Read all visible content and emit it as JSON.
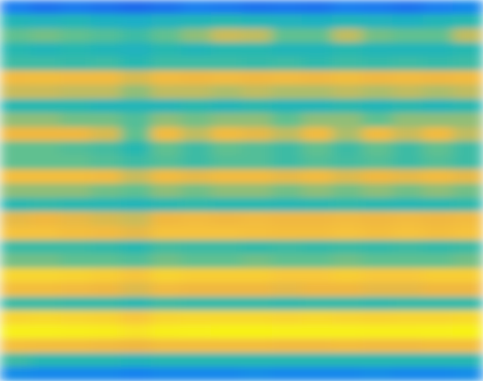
{
  "chart_data": {
    "type": "heatmap",
    "tick_labels": false,
    "cells": [
      [
        0.15,
        0.12,
        0.14,
        0.12,
        0.1,
        0.12,
        0.15,
        0.14,
        0.12,
        0.13,
        0.12,
        0.15,
        0.14,
        0.12,
        0.15,
        0.18
      ],
      [
        0.4,
        0.38,
        0.4,
        0.37,
        0.35,
        0.38,
        0.4,
        0.42,
        0.4,
        0.38,
        0.37,
        0.4,
        0.38,
        0.37,
        0.4,
        0.42
      ],
      [
        0.5,
        0.52,
        0.5,
        0.48,
        0.45,
        0.5,
        0.55,
        0.62,
        0.6,
        0.5,
        0.5,
        0.6,
        0.52,
        0.5,
        0.5,
        0.6
      ],
      [
        0.42,
        0.4,
        0.42,
        0.4,
        0.38,
        0.42,
        0.4,
        0.42,
        0.42,
        0.4,
        0.4,
        0.42,
        0.4,
        0.4,
        0.4,
        0.42
      ],
      [
        0.45,
        0.45,
        0.44,
        0.45,
        0.42,
        0.45,
        0.45,
        0.45,
        0.44,
        0.45,
        0.43,
        0.45,
        0.44,
        0.45,
        0.44,
        0.45
      ],
      [
        0.72,
        0.73,
        0.72,
        0.72,
        0.65,
        0.72,
        0.7,
        0.72,
        0.7,
        0.72,
        0.7,
        0.73,
        0.7,
        0.72,
        0.7,
        0.72
      ],
      [
        0.62,
        0.62,
        0.6,
        0.6,
        0.55,
        0.6,
        0.6,
        0.58,
        0.6,
        0.58,
        0.58,
        0.6,
        0.58,
        0.6,
        0.58,
        0.6
      ],
      [
        0.42,
        0.42,
        0.42,
        0.4,
        0.4,
        0.4,
        0.42,
        0.4,
        0.42,
        0.4,
        0.4,
        0.42,
        0.4,
        0.42,
        0.4,
        0.42
      ],
      [
        0.55,
        0.55,
        0.52,
        0.52,
        0.48,
        0.55,
        0.52,
        0.55,
        0.55,
        0.5,
        0.55,
        0.55,
        0.5,
        0.55,
        0.55,
        0.55
      ],
      [
        0.7,
        0.7,
        0.7,
        0.65,
        0.5,
        0.72,
        0.6,
        0.72,
        0.68,
        0.6,
        0.72,
        0.58,
        0.72,
        0.62,
        0.72,
        0.6
      ],
      [
        0.5,
        0.5,
        0.48,
        0.46,
        0.42,
        0.5,
        0.45,
        0.5,
        0.48,
        0.45,
        0.5,
        0.45,
        0.5,
        0.45,
        0.5,
        0.45
      ],
      [
        0.5,
        0.5,
        0.5,
        0.48,
        0.45,
        0.48,
        0.45,
        0.48,
        0.48,
        0.45,
        0.48,
        0.46,
        0.48,
        0.45,
        0.48,
        0.45
      ],
      [
        0.74,
        0.74,
        0.74,
        0.72,
        0.62,
        0.72,
        0.68,
        0.72,
        0.72,
        0.68,
        0.72,
        0.66,
        0.7,
        0.68,
        0.72,
        0.68
      ],
      [
        0.55,
        0.55,
        0.55,
        0.52,
        0.5,
        0.55,
        0.52,
        0.55,
        0.55,
        0.52,
        0.55,
        0.52,
        0.55,
        0.52,
        0.55,
        0.52
      ],
      [
        0.42,
        0.43,
        0.42,
        0.41,
        0.4,
        0.42,
        0.43,
        0.42,
        0.42,
        0.41,
        0.42,
        0.43,
        0.42,
        0.41,
        0.42,
        0.43
      ],
      [
        0.68,
        0.7,
        0.68,
        0.65,
        0.62,
        0.7,
        0.72,
        0.7,
        0.72,
        0.7,
        0.7,
        0.72,
        0.7,
        0.72,
        0.7,
        0.72
      ],
      [
        0.76,
        0.76,
        0.74,
        0.72,
        0.68,
        0.76,
        0.76,
        0.76,
        0.75,
        0.74,
        0.74,
        0.76,
        0.74,
        0.76,
        0.74,
        0.76
      ],
      [
        0.45,
        0.45,
        0.45,
        0.44,
        0.42,
        0.46,
        0.45,
        0.45,
        0.44,
        0.45,
        0.44,
        0.45,
        0.44,
        0.45,
        0.44,
        0.45
      ],
      [
        0.52,
        0.52,
        0.5,
        0.5,
        0.48,
        0.52,
        0.5,
        0.5,
        0.52,
        0.5,
        0.5,
        0.52,
        0.5,
        0.5,
        0.5,
        0.52
      ],
      [
        0.85,
        0.85,
        0.84,
        0.82,
        0.78,
        0.84,
        0.82,
        0.82,
        0.82,
        0.8,
        0.8,
        0.82,
        0.8,
        0.8,
        0.82,
        0.82
      ],
      [
        0.74,
        0.74,
        0.72,
        0.7,
        0.66,
        0.72,
        0.7,
        0.7,
        0.7,
        0.68,
        0.7,
        0.7,
        0.68,
        0.68,
        0.7,
        0.7
      ],
      [
        0.45,
        0.45,
        0.44,
        0.44,
        0.42,
        0.45,
        0.44,
        0.44,
        0.44,
        0.43,
        0.44,
        0.44,
        0.43,
        0.44,
        0.44,
        0.44
      ],
      [
        0.85,
        0.86,
        0.85,
        0.84,
        0.8,
        0.85,
        0.86,
        0.86,
        0.86,
        0.85,
        0.86,
        0.85,
        0.84,
        0.85,
        0.85,
        0.86
      ],
      [
        0.96,
        0.96,
        0.95,
        0.94,
        0.9,
        0.95,
        0.96,
        0.97,
        0.97,
        0.96,
        0.96,
        0.96,
        0.95,
        0.95,
        0.96,
        0.97
      ],
      [
        0.75,
        0.74,
        0.74,
        0.72,
        0.7,
        0.74,
        0.74,
        0.74,
        0.74,
        0.72,
        0.72,
        0.74,
        0.72,
        0.72,
        0.74,
        0.74
      ],
      [
        0.45,
        0.42,
        0.42,
        0.42,
        0.4,
        0.42,
        0.42,
        0.42,
        0.42,
        0.42,
        0.42,
        0.42,
        0.42,
        0.42,
        0.42,
        0.42
      ],
      [
        0.2,
        0.18,
        0.18,
        0.18,
        0.16,
        0.18,
        0.18,
        0.18,
        0.2,
        0.18,
        0.18,
        0.18,
        0.2,
        0.18,
        0.18,
        0.2
      ]
    ]
  }
}
